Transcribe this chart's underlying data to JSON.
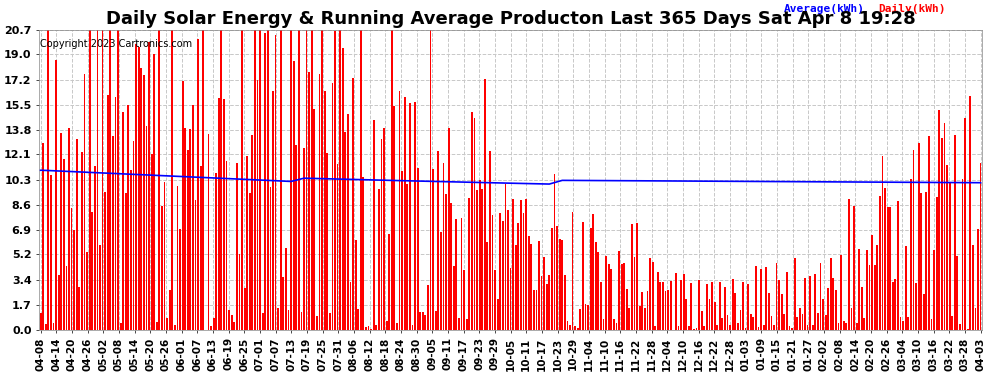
{
  "title": "Daily Solar Energy & Running Average Producton Last 365 Days Sat Apr 8 19:28",
  "copyright": "Copyright 2023 Cartronics.com",
  "legend_avg": "Average(kWh)",
  "legend_daily": "Daily(kWh)",
  "avg_color": "blue",
  "daily_color": "red",
  "yticks": [
    0.0,
    1.7,
    3.4,
    5.2,
    6.9,
    8.6,
    10.3,
    12.1,
    13.8,
    15.5,
    17.2,
    19.0,
    20.7
  ],
  "ymax": 20.7,
  "ymin": 0.0,
  "xtick_labels": [
    "04-08",
    "04-14",
    "04-20",
    "04-26",
    "05-02",
    "05-08",
    "05-14",
    "05-20",
    "05-26",
    "06-01",
    "06-07",
    "06-13",
    "06-19",
    "06-25",
    "07-01",
    "07-07",
    "07-13",
    "07-19",
    "07-25",
    "07-31",
    "08-06",
    "08-12",
    "08-18",
    "08-24",
    "08-30",
    "09-05",
    "09-11",
    "09-17",
    "09-23",
    "09-29",
    "10-05",
    "10-11",
    "10-17",
    "10-23",
    "10-29",
    "11-04",
    "11-10",
    "11-16",
    "11-22",
    "11-28",
    "12-04",
    "12-10",
    "12-16",
    "12-22",
    "12-28",
    "01-03",
    "01-09",
    "01-15",
    "01-21",
    "01-27",
    "02-02",
    "02-08",
    "02-14",
    "02-20",
    "02-26",
    "03-04",
    "03-10",
    "03-16",
    "03-22",
    "03-28",
    "04-03"
  ],
  "background_color": "#ffffff",
  "grid_color": "#c8c8c8",
  "title_fontsize": 13,
  "axis_fontsize": 8,
  "n_days": 365
}
